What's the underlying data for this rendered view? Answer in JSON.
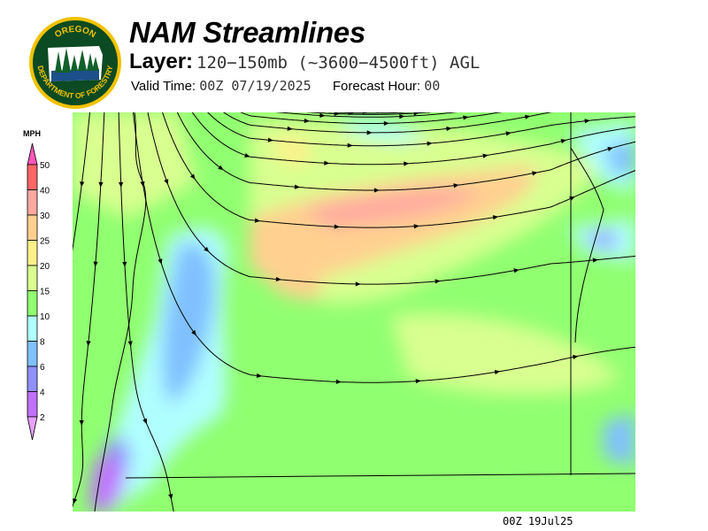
{
  "logo": {
    "top_text": "OREGON",
    "bottom_text": "DEPARTMENT OF FORESTRY",
    "ring_color": "#f2c200",
    "fill_color": "#0b4a22"
  },
  "header": {
    "title": "NAM Streamlines",
    "layer_label": "Layer:",
    "layer_value": "120−150mb (~3600−4500ft) AGL",
    "valid_time_label": "Valid Time:",
    "valid_time_value": "00Z 07/19/2025",
    "forecast_hour_label": "Forecast Hour:",
    "forecast_hour_value": "00"
  },
  "colorbar": {
    "unit": "MPH",
    "ticks": [
      "50",
      "40",
      "30",
      "25",
      "20",
      "15",
      "10",
      "8",
      "6",
      "4",
      "2"
    ],
    "top_arrow_color": "#ff55bb",
    "bottom_arrow_color": "#e8a0ff",
    "segment_colors": [
      "#ff6666",
      "#ffaaa0",
      "#ffd090",
      "#fff08a",
      "#d8ff90",
      "#90ff70",
      "#b0ffff",
      "#80c0ff",
      "#9090ff",
      "#c070ff"
    ]
  },
  "map": {
    "base_color": "#90ff70",
    "streamline_color": "#000000",
    "border_color": "#000000"
  },
  "footer": {
    "timestamp": "00Z 19Jul25"
  }
}
